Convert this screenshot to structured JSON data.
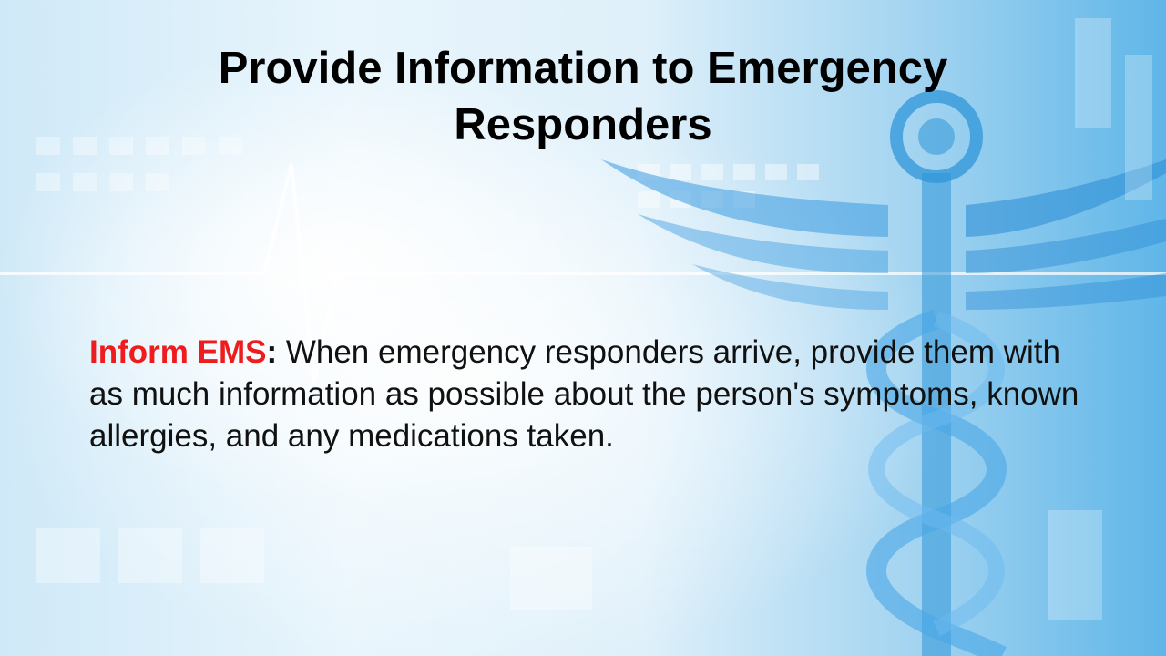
{
  "slide": {
    "title": "Provide Information to Emergency Responders",
    "body": {
      "lead": "Inform EMS",
      "colon": ":",
      "text": " When emergency responders arrive, provide them with as much information as possible about the person's symptoms, known allergies, and any medications taken."
    }
  },
  "colors": {
    "lead_text": "#ee1c1c",
    "accent_blue": "#2f95d8"
  },
  "icons": [
    "caduceus-icon",
    "heartbeat-line-icon"
  ]
}
